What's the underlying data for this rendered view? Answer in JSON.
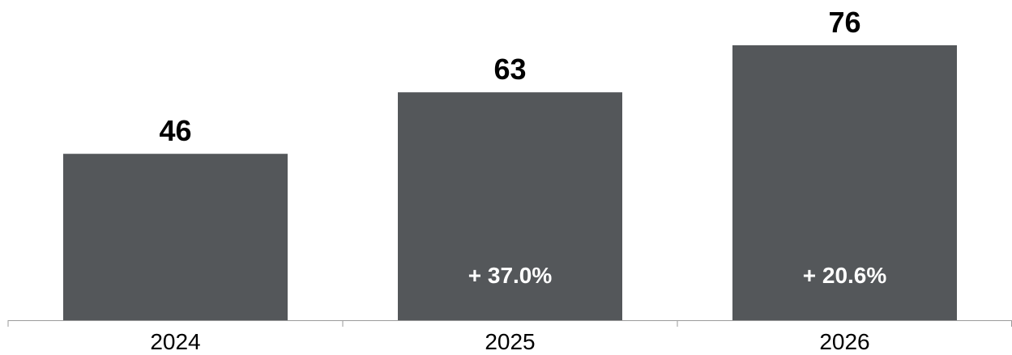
{
  "chart_data": {
    "type": "bar",
    "categories": [
      "2024",
      "2025",
      "2026"
    ],
    "values": [
      46,
      63,
      76
    ],
    "value_labels": [
      "46",
      "63",
      "76"
    ],
    "change_labels": [
      "",
      "+ 37.0%",
      "+ 20.6%"
    ],
    "title": "",
    "xlabel": "",
    "ylabel": "",
    "ylim": [
      0,
      76
    ],
    "grid": false,
    "legend": "none",
    "bar_color": "#54575a",
    "axis_color": "#9b9b9b"
  }
}
